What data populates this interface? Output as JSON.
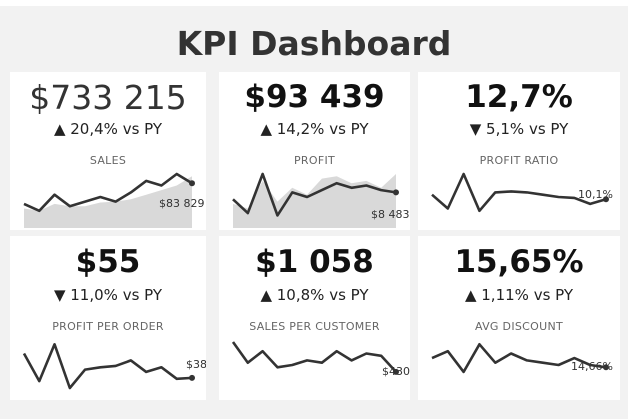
{
  "dashboard": {
    "title": "KPI Dashboard"
  },
  "colors": {
    "line": "#333333",
    "area": "#d9d9d9",
    "background": "#f2f2f2",
    "card": "#ffffff"
  },
  "kpis": [
    {
      "id": "sales",
      "value": "$733 215",
      "direction": "up",
      "arrow": "▲",
      "change": "20,4%",
      "change_suffix": "vs PY",
      "label": "SALES",
      "last_value_label": "$83 829",
      "has_area": true,
      "spark": [
        0.35,
        0.2,
        0.55,
        0.3,
        0.4,
        0.5,
        0.4,
        0.6,
        0.85,
        0.75,
        1.0,
        0.8
      ],
      "area": [
        0.25,
        0.2,
        0.35,
        0.3,
        0.3,
        0.38,
        0.4,
        0.45,
        0.55,
        0.65,
        0.75,
        0.95
      ]
    },
    {
      "id": "profit",
      "value": "$93 439",
      "direction": "up",
      "arrow": "▲",
      "change": "14,2%",
      "change_suffix": "vs PY",
      "label": "PROFIT",
      "last_value_label": "$8 483",
      "has_area": true,
      "spark": [
        0.45,
        0.15,
        1.0,
        0.1,
        0.6,
        0.5,
        0.65,
        0.8,
        0.7,
        0.75,
        0.65,
        0.6
      ],
      "area": [
        0.35,
        0.25,
        0.85,
        0.4,
        0.7,
        0.55,
        0.9,
        0.95,
        0.8,
        0.85,
        0.7,
        1.0
      ]
    },
    {
      "id": "profit-ratio",
      "value": "12,7%",
      "direction": "down",
      "arrow": "▼",
      "change": "5,1%",
      "change_suffix": "vs PY",
      "label": "PROFIT RATIO",
      "last_value_label": "10,1%",
      "has_area": false,
      "spark": [
        0.55,
        0.25,
        1.0,
        0.2,
        0.6,
        0.62,
        0.6,
        0.55,
        0.5,
        0.48,
        0.35,
        0.45
      ]
    },
    {
      "id": "profit-per-order",
      "value": "$55",
      "direction": "down",
      "arrow": "▼",
      "change": "11,0%",
      "change_suffix": "vs PY",
      "label": "PROFIT PER ORDER",
      "last_value_label": "$38",
      "has_area": false,
      "spark": [
        0.75,
        0.15,
        0.95,
        0.0,
        0.4,
        0.45,
        0.48,
        0.6,
        0.35,
        0.45,
        0.2,
        0.22
      ]
    },
    {
      "id": "sales-per-customer",
      "value": "$1 058",
      "direction": "up",
      "arrow": "▲",
      "change": "10,8%",
      "change_suffix": "vs PY",
      "label": "SALES PER CUSTOMER",
      "last_value_label": "$430",
      "has_area": false,
      "spark": [
        1.0,
        0.55,
        0.8,
        0.45,
        0.5,
        0.6,
        0.55,
        0.8,
        0.6,
        0.75,
        0.7,
        0.35
      ]
    },
    {
      "id": "avg-discount",
      "value": "15,65%",
      "direction": "up",
      "arrow": "▲",
      "change": "1,11%",
      "change_suffix": "vs PY",
      "label": "AVG DISCOUNT",
      "last_value_label": "14,66%",
      "has_area": false,
      "spark": [
        0.65,
        0.8,
        0.35,
        0.95,
        0.55,
        0.75,
        0.6,
        0.55,
        0.5,
        0.65,
        0.5,
        0.45
      ]
    }
  ]
}
